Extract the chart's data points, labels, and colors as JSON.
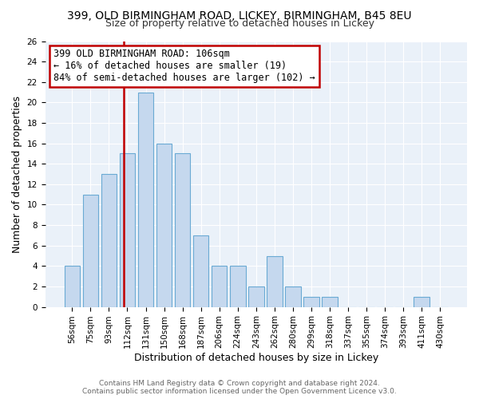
{
  "title": "399, OLD BIRMINGHAM ROAD, LICKEY, BIRMINGHAM, B45 8EU",
  "subtitle": "Size of property relative to detached houses in Lickey",
  "xlabel": "Distribution of detached houses by size in Lickey",
  "ylabel": "Number of detached properties",
  "bin_labels": [
    "56sqm",
    "75sqm",
    "93sqm",
    "112sqm",
    "131sqm",
    "150sqm",
    "168sqm",
    "187sqm",
    "206sqm",
    "224sqm",
    "243sqm",
    "262sqm",
    "280sqm",
    "299sqm",
    "318sqm",
    "337sqm",
    "355sqm",
    "374sqm",
    "393sqm",
    "411sqm",
    "430sqm"
  ],
  "bar_heights": [
    4,
    11,
    13,
    15,
    21,
    16,
    15,
    7,
    4,
    4,
    2,
    5,
    2,
    1,
    1,
    0,
    0,
    0,
    0,
    1,
    0
  ],
  "bar_color": "#c5d8ee",
  "bar_edge_color": "#6aaad4",
  "vline_color": "#c00000",
  "annotation_text": "399 OLD BIRMINGHAM ROAD: 106sqm\n← 16% of detached houses are smaller (19)\n84% of semi-detached houses are larger (102) →",
  "annotation_box_color": "#ffffff",
  "annotation_box_edge_color": "#c00000",
  "ylim": [
    0,
    26
  ],
  "yticks": [
    0,
    2,
    4,
    6,
    8,
    10,
    12,
    14,
    16,
    18,
    20,
    22,
    24,
    26
  ],
  "footer_line1": "Contains HM Land Registry data © Crown copyright and database right 2024.",
  "footer_line2": "Contains public sector information licensed under the Open Government Licence v3.0.",
  "background_color": "#ffffff",
  "plot_bg_color": "#eaf1f9",
  "grid_color": "#ffffff",
  "title_fontsize": 10,
  "subtitle_fontsize": 9,
  "axis_label_fontsize": 9,
  "tick_fontsize": 7.5,
  "footer_fontsize": 6.5,
  "annotation_fontsize": 8.5
}
